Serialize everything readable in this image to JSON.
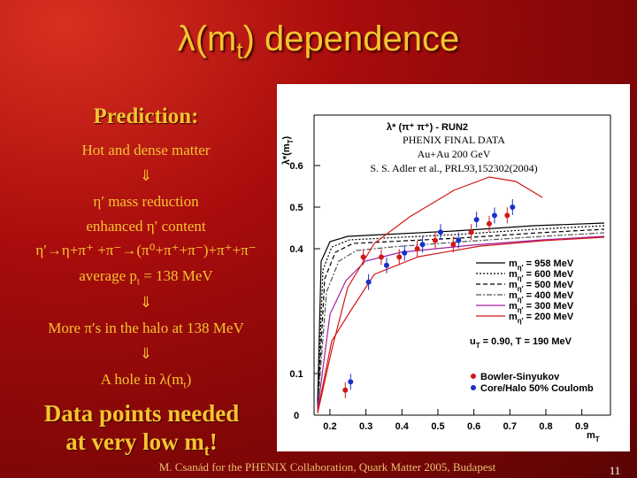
{
  "title": [
    "λ(m",
    "t",
    ") dependence"
  ],
  "prediction": {
    "heading": "Prediction:",
    "lines": [
      "Hot and dense matter",
      "⇓",
      "η′ mass reduction",
      "enhanced η′ content",
      "η′→η+π⁺ +π⁻→(π⁰+π⁺+π⁻)+π⁺+π⁻",
      "⇓",
      "More π′s in the halo at 138 MeV",
      "⇓"
    ],
    "average": [
      "average p",
      "t",
      " = 138 MeV"
    ],
    "hole": [
      "A hole in λ(m",
      "t",
      ")"
    ]
  },
  "conclusion": [
    "Data points needed",
    [
      "at very low m",
      "t",
      "!"
    ]
  ],
  "plot": {
    "title": "λ* (π⁺ π⁺) - RUN2",
    "y_label": [
      "λ*(m",
      "T",
      ")"
    ],
    "x_label": [
      "m",
      "T"
    ],
    "overlay": [
      "PHENIX FINAL DATA",
      "Au+Au 200 GeV",
      "S. S. Adler et al.,  PRL93,152302(2004)"
    ],
    "legend": [
      [
        "m",
        "η′",
        " = 958 MeV"
      ],
      [
        "m",
        "η′",
        " = 600 MeV"
      ],
      [
        "m",
        "η′",
        " = 500 MeV"
      ],
      [
        "m",
        "η′",
        " = 400 MeV"
      ],
      [
        "m",
        "η′",
        " = 300 MeV"
      ],
      [
        "m",
        "η′",
        " = 200 MeV"
      ]
    ],
    "params": [
      "u",
      "T",
      " = 0.90, T = 190 MeV"
    ],
    "models": [
      "Bowler-Sinyukov",
      "Core/Halo 50% Coulomb"
    ],
    "xlim": [
      0.15,
      0.95
    ],
    "ylim": [
      0,
      0.7
    ],
    "xticks": [
      0.2,
      0.3,
      0.4,
      0.5,
      0.6,
      0.7,
      0.8,
      0.9
    ],
    "yticks": [
      0,
      0.1,
      0.4,
      0.5,
      0.6
    ],
    "series": [
      {
        "color": "#d01818",
        "x": [
          0.25,
          0.3,
          0.35,
          0.4,
          0.45,
          0.5,
          0.55,
          0.6,
          0.65,
          0.7
        ],
        "values": [
          0.06,
          0.38,
          0.38,
          0.38,
          0.4,
          0.42,
          0.41,
          0.44,
          0.46,
          0.48
        ]
      },
      {
        "color": "#1830c8",
        "x": [
          0.25,
          0.3,
          0.35,
          0.4,
          0.45,
          0.5,
          0.55,
          0.6,
          0.65,
          0.7
        ],
        "values": [
          0.08,
          0.32,
          0.36,
          0.39,
          0.41,
          0.44,
          0.42,
          0.47,
          0.48,
          0.5
        ]
      }
    ]
  },
  "footer": "M. Csanád for the PHENIX Collaboration, Quark Matter 2005, Budapest",
  "page_number": "11"
}
